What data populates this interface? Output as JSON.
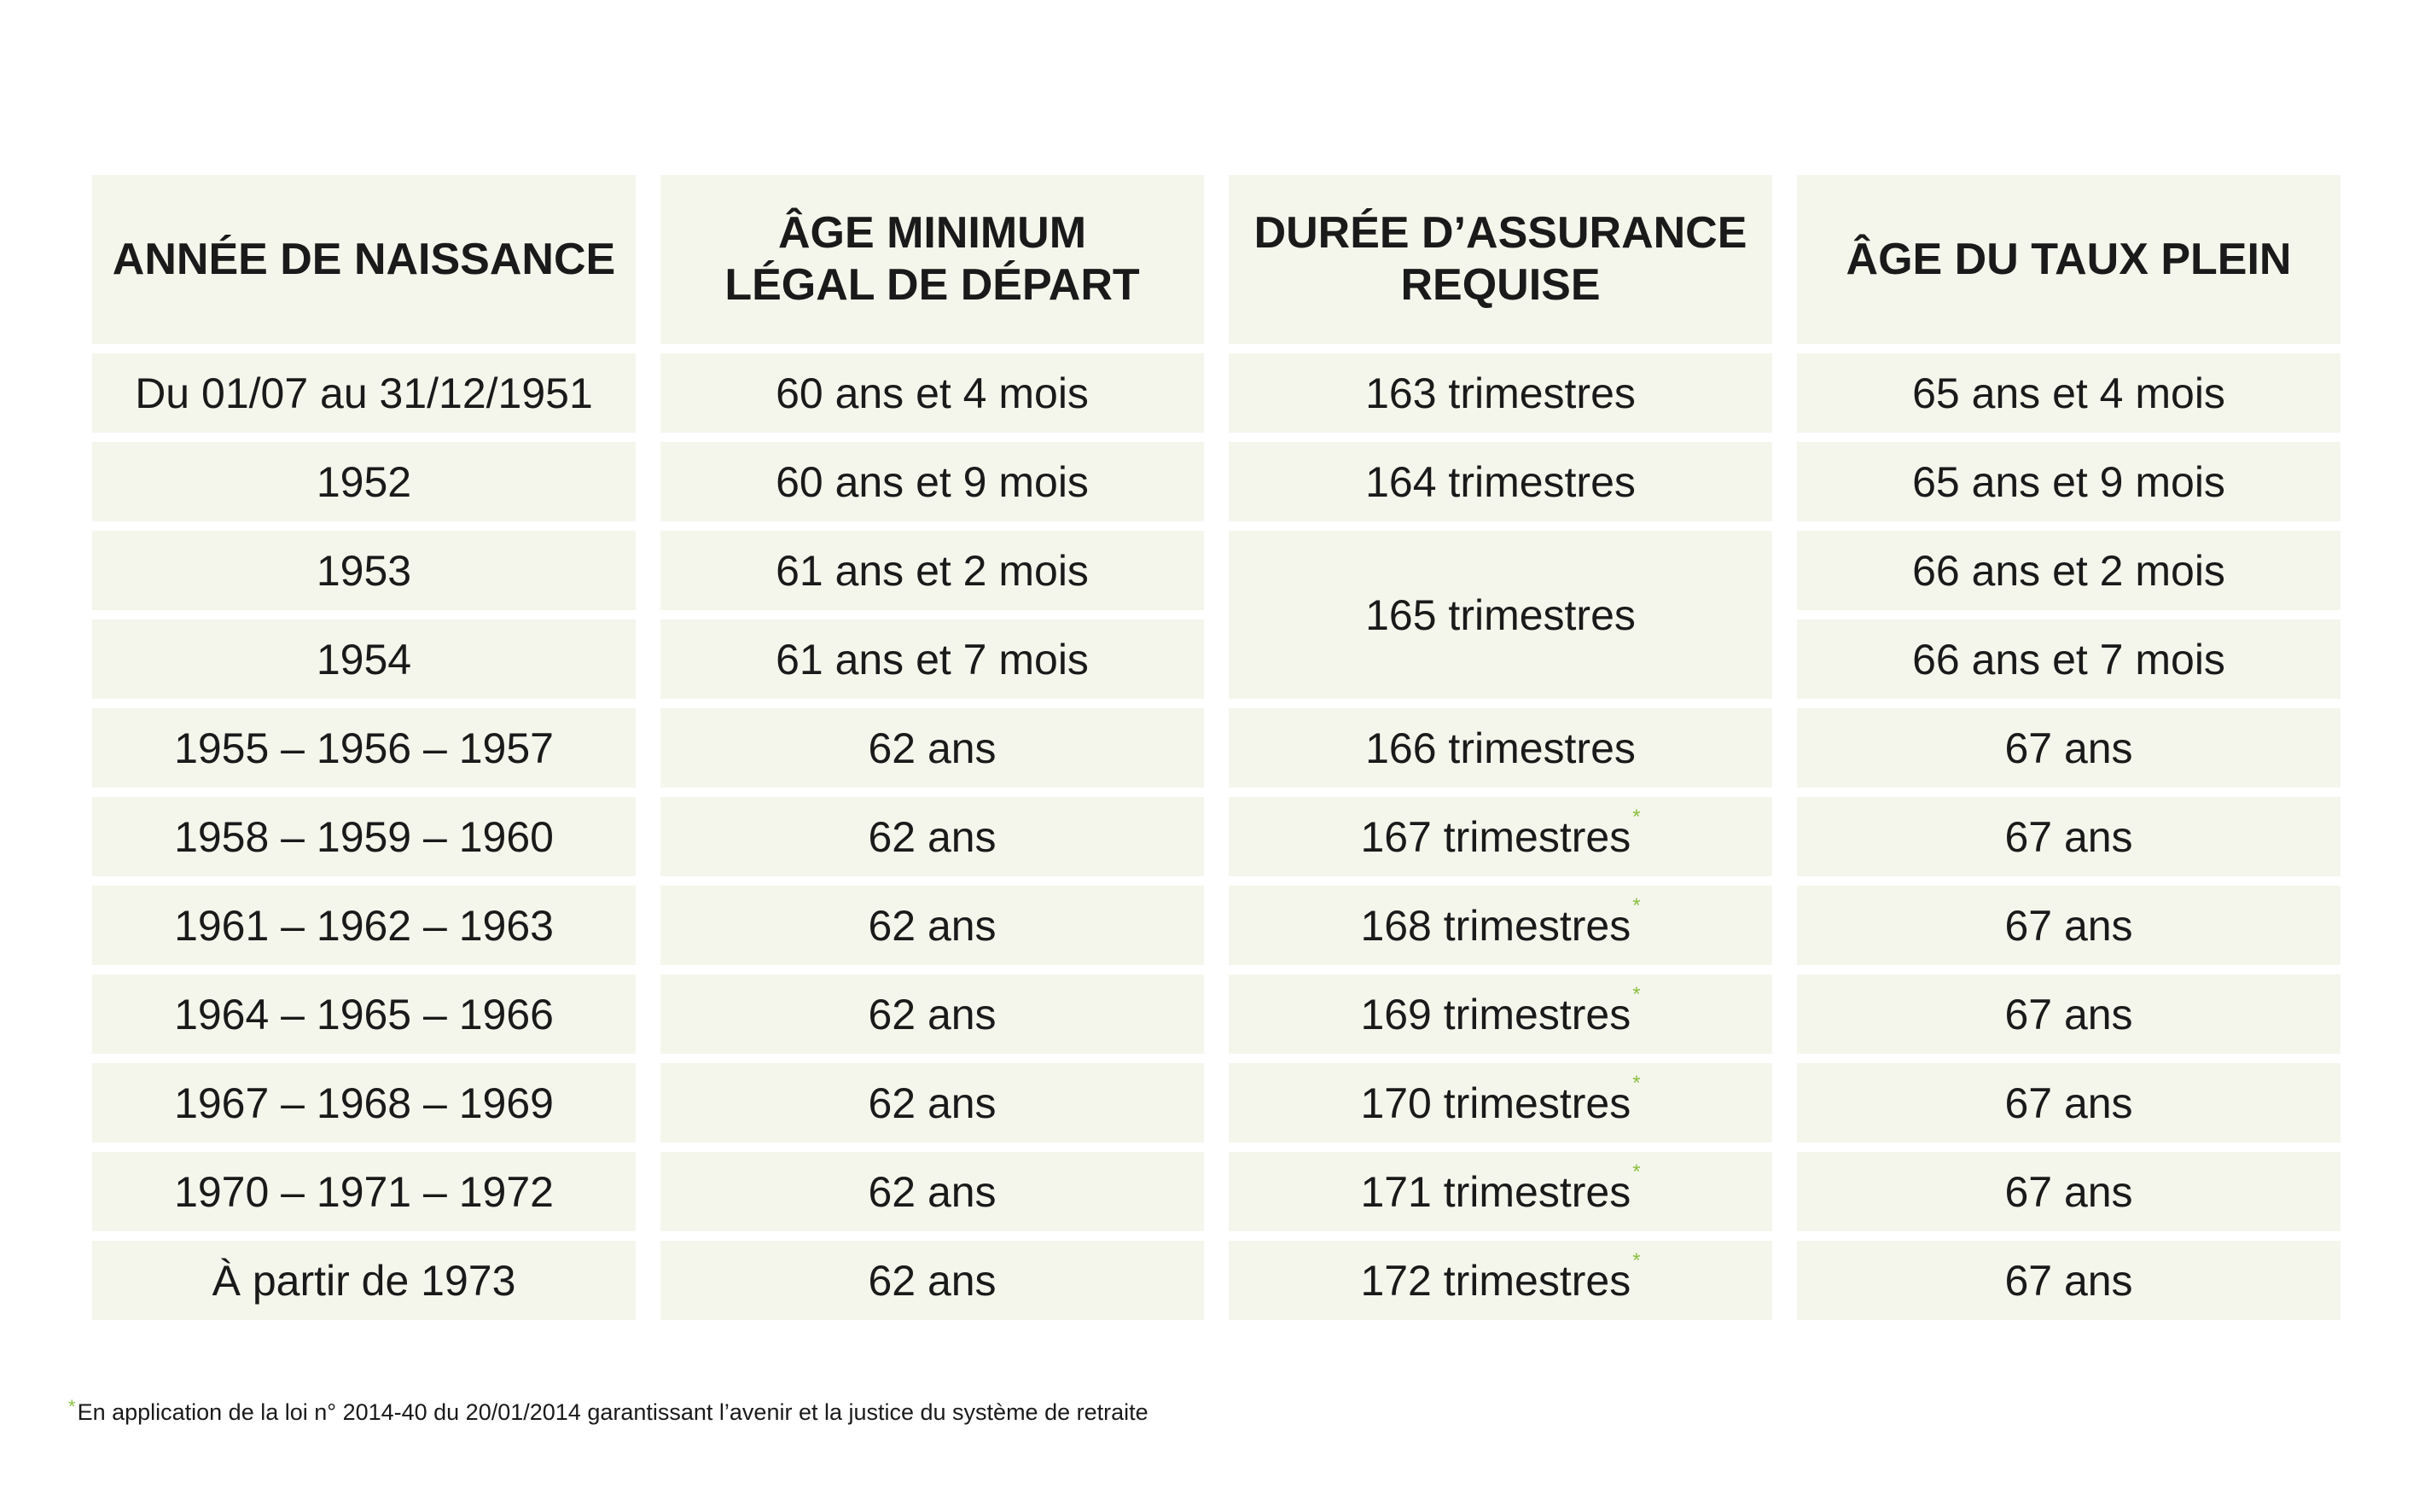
{
  "table": {
    "headers": [
      {
        "line1": "ANNÉE DE NAISSANCE",
        "line2": ""
      },
      {
        "line1": "ÂGE MINIMUM",
        "line2": "LÉGAL DE DÉPART"
      },
      {
        "line1": "DURÉE D’ASSURANCE",
        "line2": "REQUISE"
      },
      {
        "line1": "ÂGE DU TAUX PLEIN",
        "line2": ""
      }
    ],
    "rows": [
      {
        "annee": "Du 01/07 au 31/12/1951",
        "age_min": "60 ans et 4 mois",
        "duree": "163 trimestres",
        "taux_plein": "65 ans et 4 mois"
      },
      {
        "annee": "1952",
        "age_min": "60 ans et 9 mois",
        "duree": "164 trimestres",
        "taux_plein": "65 ans et 9 mois"
      },
      {
        "annee": "1953",
        "age_min": "61 ans et 2 mois",
        "duree": "165 trimestres",
        "taux_plein": "66 ans et 2 mois"
      },
      {
        "annee": "1954",
        "age_min": "61 ans et 7 mois",
        "duree": "",
        "taux_plein": "66 ans et 7 mois"
      },
      {
        "annee": "1955 – 1956 – 1957",
        "age_min": "62 ans",
        "duree": "166 trimestres",
        "taux_plein": "67 ans"
      },
      {
        "annee": "1958 – 1959 – 1960",
        "age_min": "62 ans",
        "duree": "167 trimestres",
        "taux_plein": "67 ans"
      },
      {
        "annee": "1961 – 1962 – 1963",
        "age_min": "62 ans",
        "duree": "168 trimestres",
        "taux_plein": "67 ans"
      },
      {
        "annee": "1964 – 1965 – 1966",
        "age_min": "62 ans",
        "duree": "169 trimestres",
        "taux_plein": "67 ans"
      },
      {
        "annee": "1967 – 1968 – 1969",
        "age_min": "62 ans",
        "duree": "170 trimestres",
        "taux_plein": "67 ans"
      },
      {
        "annee": "1970 – 1971 – 1972",
        "age_min": "62 ans",
        "duree": "171 trimestres",
        "taux_plein": "67 ans"
      },
      {
        "annee": "À partir de 1973",
        "age_min": "62 ans",
        "duree": "172 trimestres",
        "taux_plein": "67 ans"
      }
    ]
  },
  "footnote": {
    "marker": "*",
    "text": "En application de la loi n° 2014-40 du 20/01/2014 garantissant l’avenir et la justice du système de retraite"
  },
  "colors": {
    "cell_background": "#f4f6ec",
    "footnote_marker": "#8bbf3f",
    "text": "#1a1a1a"
  }
}
